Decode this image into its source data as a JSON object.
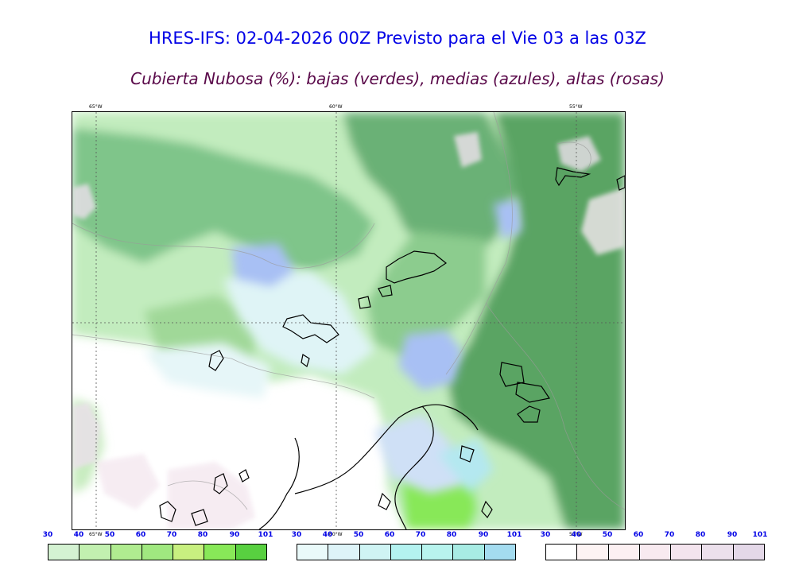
{
  "header": {
    "title": "HRES-IFS: 02-04-2026 00Z Previsto para el Vie 03 a las 03Z",
    "subtitle": "Cubierta Nubosa (%): bajas (verdes), medias (azules), altas (rosas)"
  },
  "map": {
    "longitudes": [
      "65°W",
      "60°W",
      "55°W"
    ],
    "colors": {
      "low": "#5aa464",
      "mid": "#a8c0f4",
      "high": "#e8d8e8",
      "coast": "#000000",
      "grid": "#555555"
    }
  },
  "legends": [
    {
      "name": "bajas",
      "ticks": [
        "30",
        "40",
        "50",
        "60",
        "70",
        "80",
        "90",
        "101"
      ],
      "colors": [
        "#d4f2d2",
        "#c2f0b0",
        "#b0ec90",
        "#a0e880",
        "#c8f080",
        "#88e858",
        "#58d040",
        "#60b020"
      ]
    },
    {
      "name": "medias",
      "ticks": [
        "30",
        "40",
        "50",
        "60",
        "70",
        "80",
        "90",
        "101"
      ],
      "colors": [
        "#eafafa",
        "#def4f8",
        "#cff4f4",
        "#b4f2f0",
        "#b8f4ee",
        "#a8ece4",
        "#a4dcf0",
        "#a8c0f4"
      ]
    },
    {
      "name": "altas",
      "ticks": [
        "30",
        "40",
        "50",
        "60",
        "70",
        "80",
        "90",
        "101"
      ],
      "colors": [
        "#ffffff",
        "#fdf4f4",
        "#fcf0f2",
        "#f8eaf0",
        "#f4e4ee",
        "#ece0ec",
        "#e4d8e8",
        "#ded4e4"
      ]
    }
  ]
}
